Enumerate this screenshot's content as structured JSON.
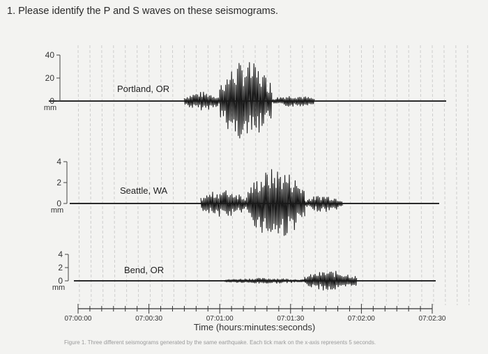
{
  "question": "1. Please identify the P and S waves on these seismograms.",
  "caption": "Figure 1. Three different seismograms generated by the same earthquake. Each tick mark on the x-axis represents 5 seconds.",
  "chart_data": {
    "type": "line",
    "xlabel": "Time (hours:minutes:seconds)",
    "x_ticks": [
      "07:00:00",
      "07:00:30",
      "07:01:00",
      "07:01:30",
      "07:02:00",
      "07:02:30"
    ],
    "x_tick_interval_seconds": 5,
    "grid": true,
    "colors": {
      "trace": "#1a1a1a",
      "grid": "#bdbdbd",
      "baseline": "#2a2a2a"
    },
    "panels": [
      {
        "station": "Portland, OR",
        "y_unit": "mm",
        "y_ticks": [
          "40",
          "20",
          "0"
        ],
        "ylim": [
          0,
          40
        ],
        "signal": [
          {
            "start_s": 45,
            "end_s": 60,
            "amp_mm": 8
          },
          {
            "start_s": 60,
            "end_s": 82,
            "amp_mm": 35
          },
          {
            "start_s": 82,
            "end_s": 100,
            "amp_mm": 5
          }
        ]
      },
      {
        "station": "Seattle, WA",
        "y_unit": "mm",
        "y_ticks": [
          "4",
          "2",
          "0"
        ],
        "ylim": [
          0,
          4
        ],
        "signal": [
          {
            "start_s": 52,
            "end_s": 72,
            "amp_mm": 1.3
          },
          {
            "start_s": 72,
            "end_s": 96,
            "amp_mm": 3.4
          },
          {
            "start_s": 96,
            "end_s": 112,
            "amp_mm": 0.8
          }
        ]
      },
      {
        "station": "Bend, OR",
        "y_unit": "mm",
        "y_ticks": [
          "4",
          "2",
          "0"
        ],
        "ylim": [
          0,
          4
        ],
        "signal": [
          {
            "start_s": 62,
            "end_s": 96,
            "amp_mm": 0.4
          },
          {
            "start_s": 96,
            "end_s": 118,
            "amp_mm": 1.5
          }
        ]
      }
    ]
  }
}
